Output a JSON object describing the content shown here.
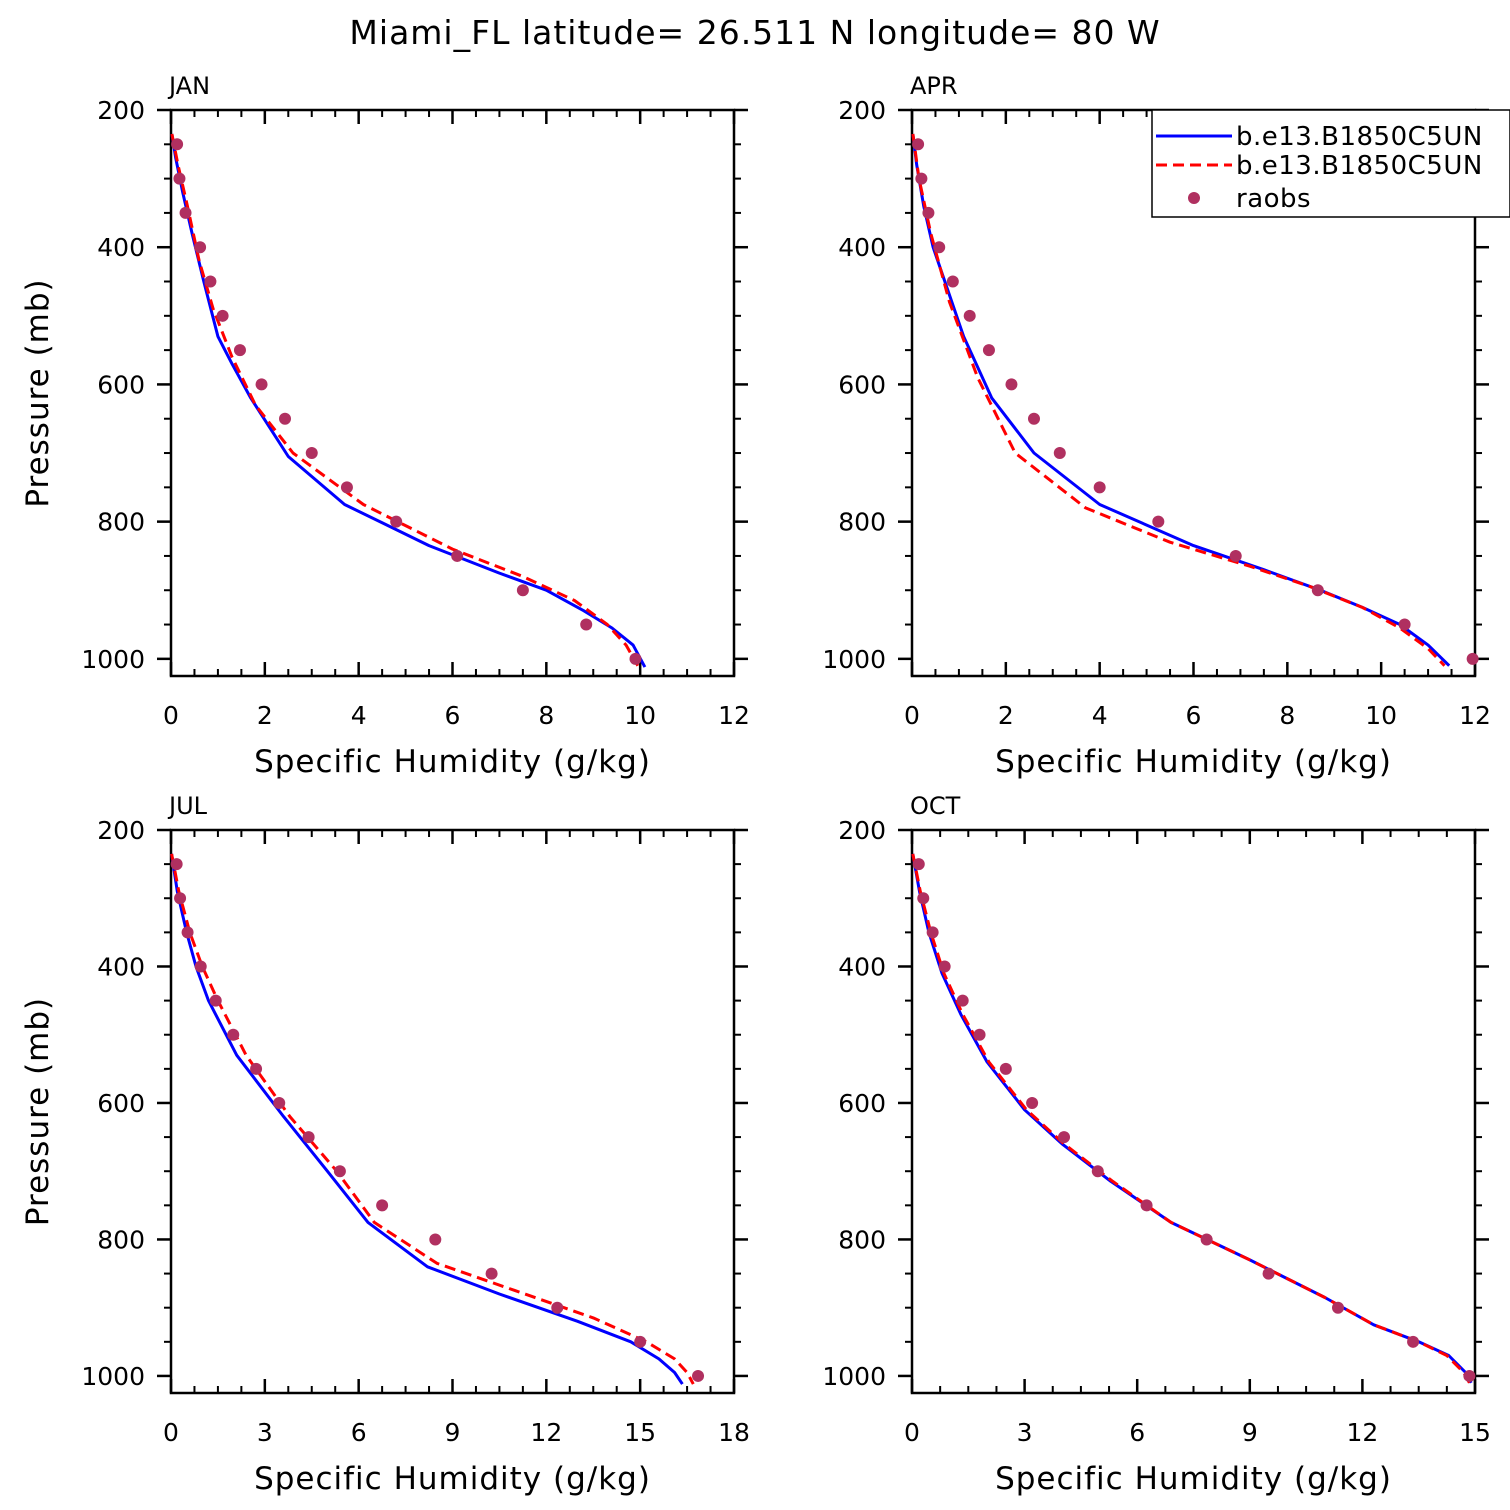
{
  "title": "Miami_FL  latitude= 26.511 N longitude= 80 W",
  "colors": {
    "model1": "#0000ff",
    "model2": "#ff0000",
    "raobs": "#b03060"
  },
  "legend": {
    "panel": 1,
    "entries": [
      {
        "label": "b.e13.B1850C5UN",
        "style": "solid",
        "color": "#0000ff"
      },
      {
        "label": "b.e13.B1850C5UN",
        "style": "dashed",
        "color": "#ff0000"
      },
      {
        "label": "raobs",
        "style": "marker",
        "color": "#b03060"
      }
    ]
  },
  "chart_data": [
    {
      "type": "line",
      "panel_label": "JAN",
      "xlabel": "Specific Humidity (g/kg)",
      "ylabel": "Pressure (mb)",
      "xlim": [
        0,
        12
      ],
      "ylim": [
        1025,
        200
      ],
      "xticks": [
        0,
        2,
        4,
        6,
        8,
        10,
        12
      ],
      "yticks": [
        200,
        400,
        600,
        800,
        1000
      ],
      "series": [
        {
          "name": "b.e13.B1850C5UN",
          "style": "solid",
          "x": [
            0.02,
            0.1,
            0.25,
            0.45,
            0.7,
            1.0,
            1.3,
            1.7,
            2.5,
            3.7,
            5.5,
            7.0,
            8.0,
            8.8,
            9.4,
            9.85,
            10.1
          ],
          "y": [
            235,
            270,
            320,
            380,
            450,
            530,
            570,
            620,
            705,
            775,
            835,
            875,
            900,
            930,
            955,
            980,
            1012
          ]
        },
        {
          "name": "b.e13.B1850C5UN",
          "style": "dashed",
          "x": [
            0.02,
            0.15,
            0.35,
            0.6,
            0.9,
            1.3,
            1.8,
            2.6,
            4.1,
            6.0,
            7.5,
            8.6,
            9.3,
            9.7,
            9.95
          ],
          "y": [
            235,
            280,
            340,
            420,
            490,
            560,
            630,
            700,
            775,
            840,
            880,
            915,
            950,
            980,
            1010
          ]
        },
        {
          "name": "raobs",
          "style": "marker",
          "x": [
            0.13,
            0.18,
            0.31,
            0.62,
            0.84,
            1.1,
            1.47,
            1.93,
            2.43,
            3.0,
            3.75,
            4.8,
            6.1,
            7.5,
            8.85,
            9.9
          ],
          "y": [
            250,
            300,
            350,
            400,
            450,
            500,
            550,
            600,
            650,
            700,
            750,
            800,
            850,
            900,
            950,
            1000
          ]
        }
      ]
    },
    {
      "type": "line",
      "panel_label": "APR",
      "xlabel": "Specific Humidity (g/kg)",
      "ylabel": "",
      "xlim": [
        0,
        12
      ],
      "ylim": [
        1025,
        200
      ],
      "xticks": [
        0,
        2,
        4,
        6,
        8,
        10,
        12
      ],
      "yticks": [
        200,
        400,
        600,
        800,
        1000
      ],
      "series": [
        {
          "name": "b.e13.B1850C5UN",
          "style": "solid",
          "x": [
            0.02,
            0.1,
            0.25,
            0.45,
            0.75,
            1.1,
            1.7,
            2.6,
            4.0,
            6.0,
            7.5,
            8.7,
            9.6,
            10.4,
            11.0,
            11.45
          ],
          "y": [
            235,
            280,
            340,
            400,
            460,
            530,
            620,
            700,
            775,
            835,
            870,
            900,
            925,
            950,
            980,
            1010
          ]
        },
        {
          "name": "b.e13.B1850C5UN",
          "style": "dashed",
          "x": [
            0.02,
            0.15,
            0.4,
            0.8,
            1.4,
            2.2,
            3.7,
            5.5,
            7.2,
            8.5,
            9.6,
            10.4,
            11.0,
            11.35
          ],
          "y": [
            235,
            300,
            380,
            480,
            590,
            700,
            780,
            830,
            865,
            895,
            925,
            955,
            985,
            1010
          ]
        },
        {
          "name": "raobs",
          "style": "marker",
          "x": [
            0.13,
            0.2,
            0.35,
            0.58,
            0.87,
            1.23,
            1.64,
            2.12,
            2.6,
            3.15,
            4.0,
            5.25,
            6.9,
            8.65,
            10.5,
            11.95
          ],
          "y": [
            250,
            300,
            350,
            400,
            450,
            500,
            550,
            600,
            650,
            700,
            750,
            800,
            850,
            900,
            950,
            1000
          ]
        }
      ]
    },
    {
      "type": "line",
      "panel_label": "JUL",
      "xlabel": "Specific Humidity (g/kg)",
      "ylabel": "Pressure (mb)",
      "xlim": [
        0,
        18
      ],
      "ylim": [
        1025,
        200
      ],
      "xticks": [
        0,
        3,
        6,
        9,
        12,
        15,
        18
      ],
      "yticks": [
        200,
        400,
        600,
        800,
        1000
      ],
      "series": [
        {
          "name": "b.e13.B1850C5UN",
          "style": "solid",
          "x": [
            0.02,
            0.2,
            0.5,
            0.8,
            1.2,
            2.1,
            3.6,
            5.0,
            6.3,
            8.2,
            10.5,
            13.0,
            14.7,
            15.6,
            16.1,
            16.35
          ],
          "y": [
            235,
            290,
            350,
            400,
            450,
            530,
            620,
            700,
            775,
            840,
            880,
            920,
            950,
            975,
            995,
            1012
          ]
        },
        {
          "name": "b.e13.B1850C5UN",
          "style": "dashed",
          "x": [
            0.02,
            0.25,
            0.6,
            1.0,
            1.5,
            2.4,
            3.8,
            5.3,
            6.5,
            8.5,
            11.0,
            13.5,
            15.2,
            16.1,
            16.5,
            16.7
          ],
          "y": [
            235,
            290,
            350,
            400,
            450,
            530,
            620,
            700,
            775,
            835,
            875,
            915,
            950,
            975,
            995,
            1012
          ]
        },
        {
          "name": "raobs",
          "style": "marker",
          "x": [
            0.18,
            0.29,
            0.53,
            0.95,
            1.43,
            1.99,
            2.72,
            3.46,
            4.4,
            5.4,
            6.75,
            8.45,
            10.25,
            12.35,
            15.0,
            16.85
          ],
          "y": [
            250,
            300,
            350,
            400,
            450,
            500,
            550,
            600,
            650,
            700,
            750,
            800,
            850,
            900,
            950,
            1000
          ]
        }
      ]
    },
    {
      "type": "line",
      "panel_label": "OCT",
      "xlabel": "Specific Humidity (g/kg)",
      "ylabel": "",
      "xlim": [
        0,
        15
      ],
      "ylim": [
        1025,
        200
      ],
      "xticks": [
        0,
        3,
        6,
        9,
        12,
        15
      ],
      "yticks": [
        200,
        400,
        600,
        800,
        1000
      ],
      "series": [
        {
          "name": "b.e13.B1850C5UN",
          "style": "solid",
          "x": [
            0.02,
            0.2,
            0.45,
            0.8,
            1.3,
            2.0,
            3.0,
            4.0,
            5.3,
            6.9,
            9.0,
            11.0,
            12.3,
            13.5,
            14.3,
            14.75,
            14.9
          ],
          "y": [
            235,
            290,
            350,
            410,
            470,
            540,
            610,
            660,
            715,
            775,
            830,
            885,
            925,
            950,
            970,
            995,
            1010
          ]
        },
        {
          "name": "b.e13.B1850C5UN",
          "style": "dashed",
          "x": [
            0.02,
            0.22,
            0.5,
            0.85,
            1.35,
            2.05,
            3.05,
            4.05,
            5.35,
            6.9,
            9.0,
            11.0,
            12.3,
            13.5,
            14.25,
            14.7,
            14.85
          ],
          "y": [
            235,
            290,
            350,
            410,
            470,
            540,
            610,
            660,
            715,
            775,
            830,
            885,
            925,
            950,
            970,
            995,
            1010
          ]
        },
        {
          "name": "raobs",
          "style": "marker",
          "x": [
            0.18,
            0.3,
            0.55,
            0.87,
            1.35,
            1.8,
            2.5,
            3.2,
            4.05,
            4.95,
            6.25,
            7.85,
            9.5,
            11.35,
            13.35,
            14.85
          ],
          "y": [
            250,
            300,
            350,
            400,
            450,
            500,
            550,
            600,
            650,
            700,
            750,
            800,
            850,
            900,
            950,
            1000
          ]
        }
      ]
    }
  ]
}
